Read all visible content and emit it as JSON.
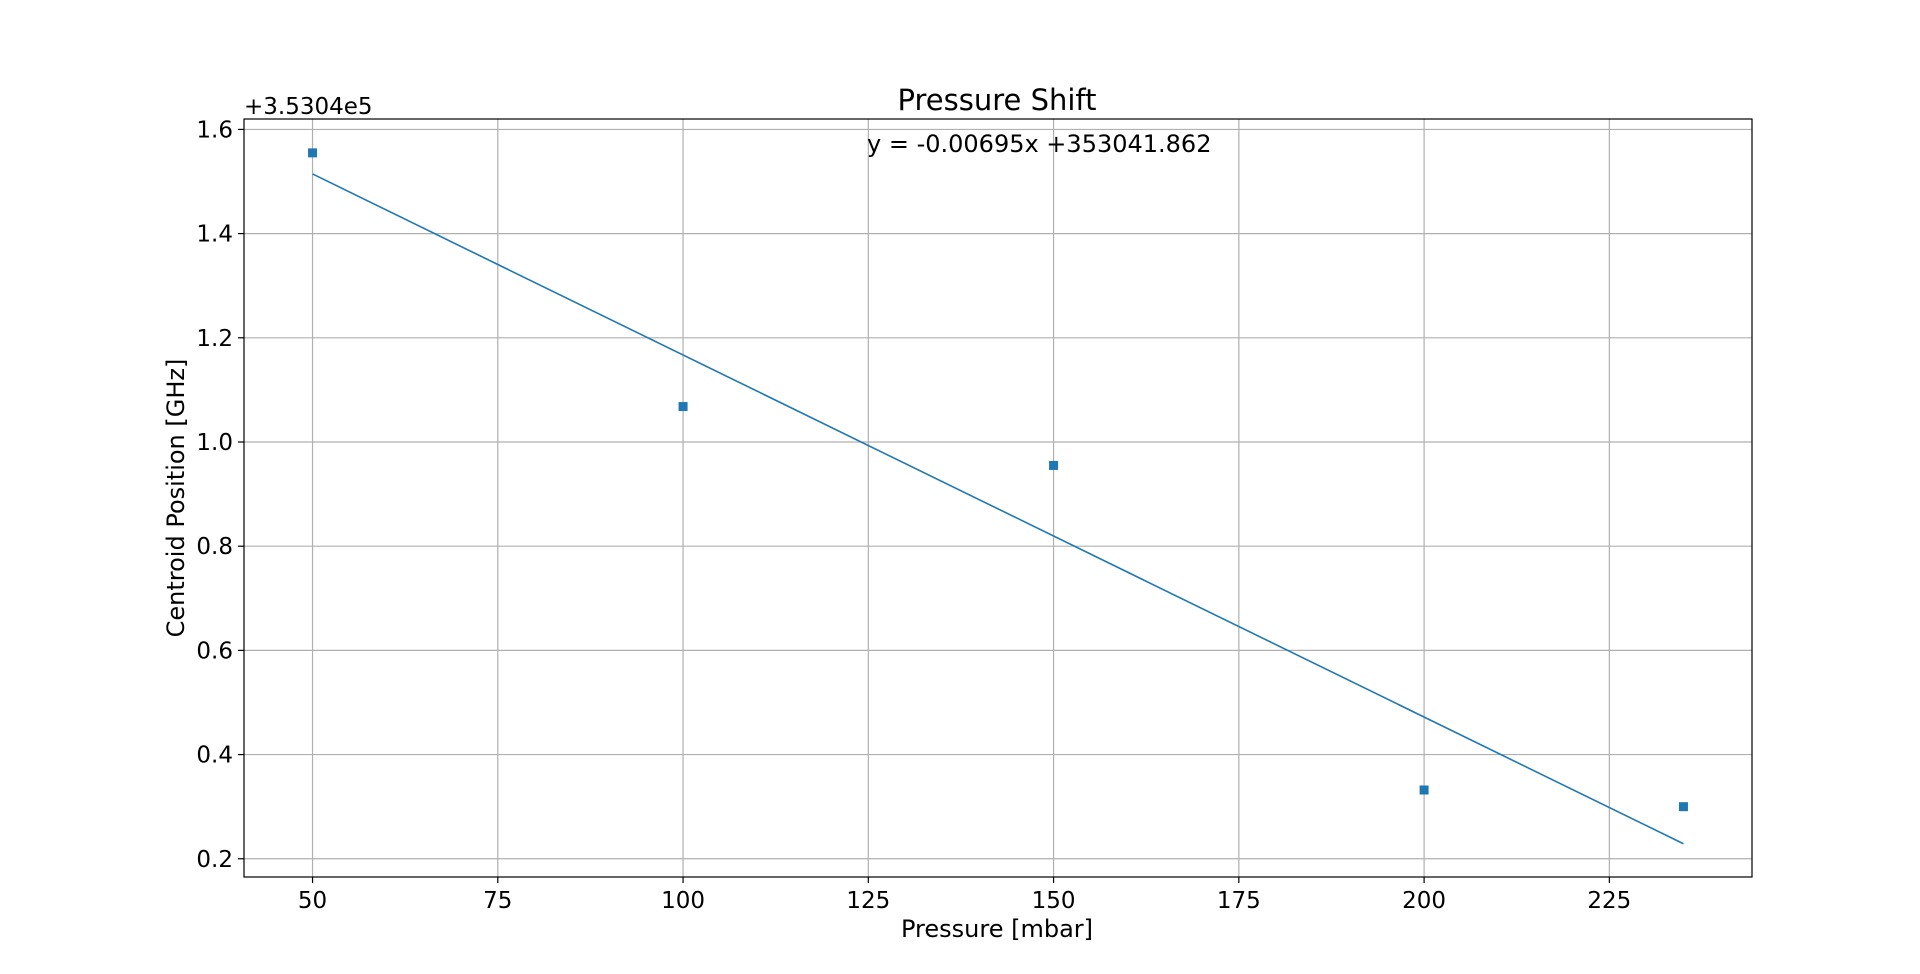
{
  "chart_data": {
    "type": "scatter",
    "title": "Pressure Shift",
    "xlabel": "Pressure [mbar]",
    "ylabel": "Centroid Position [GHz]",
    "y_offset_label": "+3.5304e5",
    "annotation": "y = -0.00695x +353041.862",
    "xlim": [
      40.75,
      244.25
    ],
    "ylim": [
      0.165,
      1.62
    ],
    "x_ticks": [
      50,
      75,
      100,
      125,
      150,
      175,
      200,
      225
    ],
    "x_tick_labels": [
      "50",
      "75",
      "100",
      "125",
      "150",
      "175",
      "200",
      "225"
    ],
    "y_ticks": [
      0.2,
      0.4,
      0.6,
      0.8,
      1.0,
      1.2,
      1.4,
      1.6
    ],
    "y_tick_labels": [
      "0.2",
      "0.4",
      "0.6",
      "0.8",
      "1.0",
      "1.2",
      "1.4",
      "1.6"
    ],
    "grid": true,
    "series": [
      {
        "marker": "square",
        "color": "#1f77b4",
        "x": [
          50,
          100,
          150,
          200,
          235
        ],
        "y": [
          1.555,
          1.068,
          0.955,
          0.332,
          0.3
        ]
      }
    ],
    "fit_line": {
      "color": "#1f77b4",
      "x": [
        50,
        235
      ],
      "y": [
        1.5145,
        0.2288
      ]
    }
  }
}
